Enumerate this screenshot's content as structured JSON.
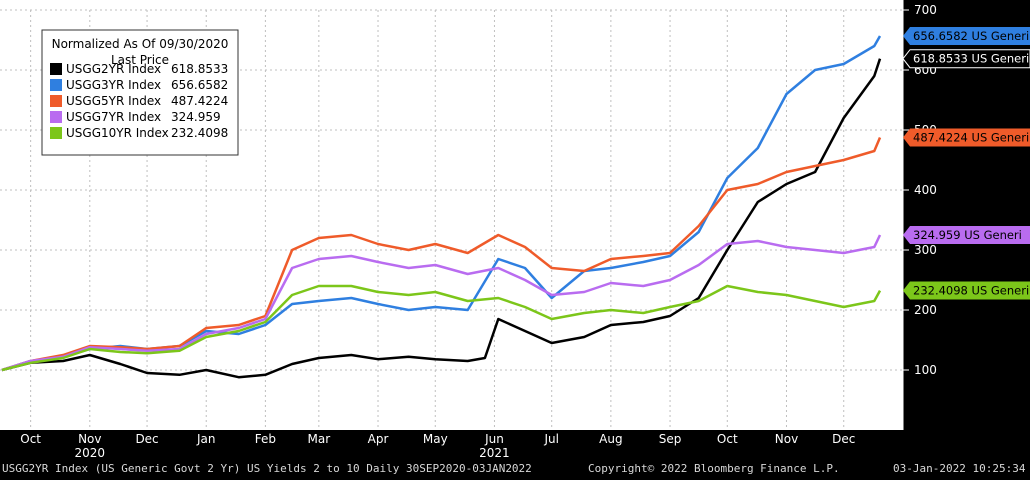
{
  "footer": {
    "left": "USGG2YR Index (US Generic Govt 2 Yr) US Yields 2 to 10  Daily 30SEP2020-03JAN2022",
    "center": "Copyright© 2022 Bloomberg Finance L.P.",
    "right": "03-Jan-2022 10:25:34"
  },
  "chart_data": {
    "type": "line",
    "x_range": [
      "2020-09-30",
      "2022-01-03"
    ],
    "ylim": [
      0,
      700
    ],
    "yticks": [
      100,
      200,
      300,
      400,
      500,
      600,
      700
    ],
    "grid": true,
    "legend_position": "top-left",
    "legend_title": [
      "Normalized As Of 09/30/2020",
      "Last Price"
    ],
    "month_ticks": [
      {
        "label": "Oct",
        "date": "2020-10-15"
      },
      {
        "label": "Nov",
        "date": "2020-11-15"
      },
      {
        "label": "Dec",
        "date": "2020-12-15"
      },
      {
        "label": "Jan",
        "date": "2021-01-15"
      },
      {
        "label": "Feb",
        "date": "2021-02-15"
      },
      {
        "label": "Mar",
        "date": "2021-03-15"
      },
      {
        "label": "Apr",
        "date": "2021-04-15"
      },
      {
        "label": "May",
        "date": "2021-05-15"
      },
      {
        "label": "Jun",
        "date": "2021-06-15"
      },
      {
        "label": "Jul",
        "date": "2021-07-15"
      },
      {
        "label": "Aug",
        "date": "2021-08-15"
      },
      {
        "label": "Sep",
        "date": "2021-09-15"
      },
      {
        "label": "Oct",
        "date": "2021-10-15"
      },
      {
        "label": "Nov",
        "date": "2021-11-15"
      },
      {
        "label": "Dec",
        "date": "2021-12-15"
      }
    ],
    "year_labels": [
      {
        "label": "2020",
        "date": "2020-11-15"
      },
      {
        "label": "2021",
        "date": "2021-06-15"
      }
    ],
    "series": [
      {
        "name": "USGG2YR Index",
        "last": "618.8533",
        "tag": "618.8533 US Generi",
        "color": "#000000",
        "points": [
          [
            "2020-09-30",
            100
          ],
          [
            "2020-10-15",
            112
          ],
          [
            "2020-11-01",
            115
          ],
          [
            "2020-11-15",
            125
          ],
          [
            "2020-12-01",
            110
          ],
          [
            "2020-12-15",
            95
          ],
          [
            "2021-01-01",
            92
          ],
          [
            "2021-01-15",
            100
          ],
          [
            "2021-02-01",
            88
          ],
          [
            "2021-02-15",
            92
          ],
          [
            "2021-03-01",
            110
          ],
          [
            "2021-03-15",
            120
          ],
          [
            "2021-04-01",
            125
          ],
          [
            "2021-04-15",
            118
          ],
          [
            "2021-05-01",
            122
          ],
          [
            "2021-05-15",
            118
          ],
          [
            "2021-06-01",
            115
          ],
          [
            "2021-06-10",
            120
          ],
          [
            "2021-06-17",
            185
          ],
          [
            "2021-07-01",
            165
          ],
          [
            "2021-07-15",
            145
          ],
          [
            "2021-08-01",
            155
          ],
          [
            "2021-08-15",
            175
          ],
          [
            "2021-09-01",
            180
          ],
          [
            "2021-09-15",
            190
          ],
          [
            "2021-09-30",
            220
          ],
          [
            "2021-10-15",
            300
          ],
          [
            "2021-10-31",
            380
          ],
          [
            "2021-11-15",
            410
          ],
          [
            "2021-11-30",
            430
          ],
          [
            "2021-12-15",
            520
          ],
          [
            "2021-12-31",
            590
          ],
          [
            "2022-01-03",
            618.8533
          ]
        ]
      },
      {
        "name": "USGG3YR Index",
        "last": "656.6582",
        "tag": "656.6582 US Generi",
        "color": "#2f7fe0",
        "points": [
          [
            "2020-09-30",
            100
          ],
          [
            "2020-10-15",
            115
          ],
          [
            "2020-11-01",
            122
          ],
          [
            "2020-11-15",
            135
          ],
          [
            "2020-12-01",
            140
          ],
          [
            "2020-12-15",
            135
          ],
          [
            "2021-01-01",
            140
          ],
          [
            "2021-01-15",
            165
          ],
          [
            "2021-02-01",
            160
          ],
          [
            "2021-02-15",
            175
          ],
          [
            "2021-03-01",
            210
          ],
          [
            "2021-03-15",
            215
          ],
          [
            "2021-04-01",
            220
          ],
          [
            "2021-04-15",
            210
          ],
          [
            "2021-05-01",
            200
          ],
          [
            "2021-05-15",
            205
          ],
          [
            "2021-06-01",
            200
          ],
          [
            "2021-06-17",
            285
          ],
          [
            "2021-07-01",
            270
          ],
          [
            "2021-07-15",
            220
          ],
          [
            "2021-08-01",
            265
          ],
          [
            "2021-08-15",
            270
          ],
          [
            "2021-09-01",
            280
          ],
          [
            "2021-09-15",
            290
          ],
          [
            "2021-09-30",
            330
          ],
          [
            "2021-10-15",
            420
          ],
          [
            "2021-10-31",
            470
          ],
          [
            "2021-11-15",
            560
          ],
          [
            "2021-11-30",
            600
          ],
          [
            "2021-12-15",
            610
          ],
          [
            "2021-12-31",
            640
          ],
          [
            "2022-01-03",
            656.6582
          ]
        ]
      },
      {
        "name": "USGG5YR Index",
        "last": "487.4224",
        "tag": "487.4224 US Generi",
        "color": "#ef5b2a",
        "points": [
          [
            "2020-09-30",
            100
          ],
          [
            "2020-10-15",
            115
          ],
          [
            "2020-11-01",
            125
          ],
          [
            "2020-11-15",
            140
          ],
          [
            "2020-12-01",
            138
          ],
          [
            "2020-12-15",
            135
          ],
          [
            "2021-01-01",
            140
          ],
          [
            "2021-01-15",
            170
          ],
          [
            "2021-02-01",
            175
          ],
          [
            "2021-02-15",
            190
          ],
          [
            "2021-03-01",
            300
          ],
          [
            "2021-03-15",
            320
          ],
          [
            "2021-04-01",
            325
          ],
          [
            "2021-04-15",
            310
          ],
          [
            "2021-05-01",
            300
          ],
          [
            "2021-05-15",
            310
          ],
          [
            "2021-06-01",
            295
          ],
          [
            "2021-06-17",
            325
          ],
          [
            "2021-07-01",
            305
          ],
          [
            "2021-07-15",
            270
          ],
          [
            "2021-08-01",
            265
          ],
          [
            "2021-08-15",
            285
          ],
          [
            "2021-09-01",
            290
          ],
          [
            "2021-09-15",
            295
          ],
          [
            "2021-09-30",
            340
          ],
          [
            "2021-10-15",
            400
          ],
          [
            "2021-10-31",
            410
          ],
          [
            "2021-11-15",
            430
          ],
          [
            "2021-11-30",
            440
          ],
          [
            "2021-12-15",
            450
          ],
          [
            "2021-12-31",
            465
          ],
          [
            "2022-01-03",
            487.4224
          ]
        ]
      },
      {
        "name": "USGG7YR Index",
        "last": "324.959",
        "tag": "324.959  US Generi",
        "color": "#b96cf0",
        "points": [
          [
            "2020-09-30",
            100
          ],
          [
            "2020-10-15",
            115
          ],
          [
            "2020-11-01",
            122
          ],
          [
            "2020-11-15",
            138
          ],
          [
            "2020-12-01",
            135
          ],
          [
            "2020-12-15",
            132
          ],
          [
            "2021-01-01",
            135
          ],
          [
            "2021-01-15",
            160
          ],
          [
            "2021-02-01",
            170
          ],
          [
            "2021-02-15",
            185
          ],
          [
            "2021-03-01",
            270
          ],
          [
            "2021-03-15",
            285
          ],
          [
            "2021-04-01",
            290
          ],
          [
            "2021-04-15",
            280
          ],
          [
            "2021-05-01",
            270
          ],
          [
            "2021-05-15",
            275
          ],
          [
            "2021-06-01",
            260
          ],
          [
            "2021-06-17",
            270
          ],
          [
            "2021-07-01",
            250
          ],
          [
            "2021-07-15",
            225
          ],
          [
            "2021-08-01",
            230
          ],
          [
            "2021-08-15",
            245
          ],
          [
            "2021-09-01",
            240
          ],
          [
            "2021-09-15",
            250
          ],
          [
            "2021-09-30",
            275
          ],
          [
            "2021-10-15",
            310
          ],
          [
            "2021-10-31",
            315
          ],
          [
            "2021-11-15",
            305
          ],
          [
            "2021-11-30",
            300
          ],
          [
            "2021-12-15",
            295
          ],
          [
            "2021-12-31",
            305
          ],
          [
            "2022-01-03",
            324.959
          ]
        ]
      },
      {
        "name": "USGG10YR Index",
        "last": "232.4098",
        "tag": "232.4098 US Generi",
        "color": "#7cc61a",
        "points": [
          [
            "2020-09-30",
            100
          ],
          [
            "2020-10-15",
            112
          ],
          [
            "2020-11-01",
            120
          ],
          [
            "2020-11-15",
            135
          ],
          [
            "2020-12-01",
            130
          ],
          [
            "2020-12-15",
            128
          ],
          [
            "2021-01-01",
            132
          ],
          [
            "2021-01-15",
            155
          ],
          [
            "2021-02-01",
            165
          ],
          [
            "2021-02-15",
            180
          ],
          [
            "2021-03-01",
            225
          ],
          [
            "2021-03-15",
            240
          ],
          [
            "2021-04-01",
            240
          ],
          [
            "2021-04-15",
            230
          ],
          [
            "2021-05-01",
            225
          ],
          [
            "2021-05-15",
            230
          ],
          [
            "2021-06-01",
            215
          ],
          [
            "2021-06-17",
            220
          ],
          [
            "2021-07-01",
            205
          ],
          [
            "2021-07-15",
            185
          ],
          [
            "2021-08-01",
            195
          ],
          [
            "2021-08-15",
            200
          ],
          [
            "2021-09-01",
            195
          ],
          [
            "2021-09-15",
            205
          ],
          [
            "2021-09-30",
            215
          ],
          [
            "2021-10-15",
            240
          ],
          [
            "2021-10-31",
            230
          ],
          [
            "2021-11-15",
            225
          ],
          [
            "2021-11-30",
            215
          ],
          [
            "2021-12-15",
            205
          ],
          [
            "2021-12-31",
            215
          ],
          [
            "2022-01-03",
            232.4098
          ]
        ]
      }
    ]
  }
}
